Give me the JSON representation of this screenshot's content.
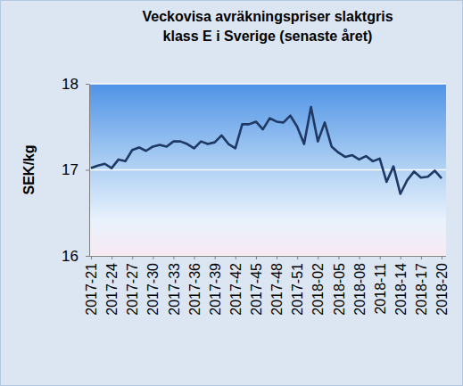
{
  "chart_data": {
    "type": "line",
    "title": [
      "Veckovisa avräkningspriser slaktgris",
      "klass E i Sverige (senaste året)"
    ],
    "y_label": "SEK/kg",
    "categories": [
      "2017-21",
      null,
      null,
      "2017-24",
      null,
      null,
      "2017-27",
      null,
      null,
      "2017-30",
      null,
      null,
      "2017-33",
      null,
      null,
      "2017-36",
      null,
      null,
      "2017-39",
      null,
      null,
      "2017-42",
      null,
      null,
      "2017-45",
      null,
      null,
      "2017-48",
      null,
      null,
      "2017-51",
      null,
      null,
      "2018-02",
      null,
      null,
      "2018-05",
      null,
      null,
      "2018-08",
      null,
      null,
      "2018-11",
      null,
      null,
      "2018-14",
      null,
      null,
      "2018-17",
      null,
      null,
      "2018-20"
    ],
    "values": [
      17.02,
      17.05,
      17.07,
      17.02,
      17.12,
      17.1,
      17.23,
      17.26,
      17.22,
      17.27,
      17.29,
      17.27,
      17.33,
      17.33,
      17.3,
      17.25,
      17.33,
      17.3,
      17.32,
      17.4,
      17.3,
      17.25,
      17.53,
      17.53,
      17.56,
      17.47,
      17.6,
      17.56,
      17.55,
      17.63,
      17.5,
      17.3,
      17.73,
      17.33,
      17.55,
      17.27,
      17.2,
      17.15,
      17.17,
      17.12,
      17.16,
      17.1,
      17.13,
      16.86,
      17.04,
      16.72,
      16.88,
      16.98,
      16.91,
      16.92,
      16.99,
      16.9
    ],
    "color": "#1f3864",
    "ylim": [
      16,
      18
    ],
    "yticks": [
      16,
      17,
      18
    ],
    "grid": true
  }
}
